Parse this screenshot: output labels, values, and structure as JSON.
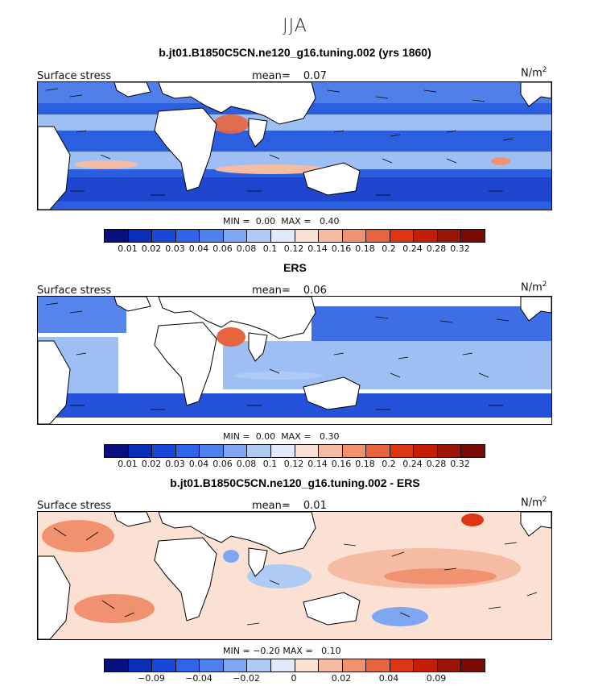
{
  "season": "JJA",
  "chart_data": [
    {
      "type": "heatmap",
      "title": "b.jt01.B1850C5CN.ne120_g16.tuning.002 (yrs 1860)",
      "field_label": "Surface stress",
      "mean_label": "mean=",
      "mean_value": "0.07",
      "units_base": "N/m",
      "units_exp": "2",
      "min_label": "MIN =",
      "min_value": "0.00",
      "max_label": "MAX =",
      "max_value": "0.40",
      "colorbar_colors": [
        "#08107f",
        "#0a2fb8",
        "#1848d8",
        "#2e64e8",
        "#4d82ee",
        "#7ea6f2",
        "#aecbf5",
        "#dceafa",
        "#fbe0d4",
        "#f6bca3",
        "#f09270",
        "#e8643f",
        "#dd3512",
        "#c21e0a",
        "#9a1408",
        "#7a0a04"
      ],
      "colorbar_ticks": [
        "0.01",
        "0.02",
        "0.03",
        "0.04",
        "0.06",
        "0.08",
        "0.1",
        "0.12",
        "0.14",
        "0.16",
        "0.18",
        "0.2",
        "0.24",
        "0.28",
        "0.32"
      ]
    },
    {
      "type": "heatmap",
      "title": "ERS",
      "field_label": "Surface stress",
      "mean_label": "mean=",
      "mean_value": "0.06",
      "units_base": "N/m",
      "units_exp": "2",
      "min_label": "MIN =",
      "min_value": "0.00",
      "max_label": "MAX =",
      "max_value": "0.30",
      "colorbar_colors": [
        "#08107f",
        "#0a2fb8",
        "#1848d8",
        "#2e64e8",
        "#4d82ee",
        "#7ea6f2",
        "#aecbf5",
        "#dceafa",
        "#fbe0d4",
        "#f6bca3",
        "#f09270",
        "#e8643f",
        "#dd3512",
        "#c21e0a",
        "#9a1408",
        "#7a0a04"
      ],
      "colorbar_ticks": [
        "0.01",
        "0.02",
        "0.03",
        "0.04",
        "0.06",
        "0.08",
        "0.1",
        "0.12",
        "0.14",
        "0.16",
        "0.18",
        "0.2",
        "0.24",
        "0.28",
        "0.32"
      ]
    },
    {
      "type": "heatmap",
      "title": "b.jt01.B1850C5CN.ne120_g16.tuning.002 - ERS",
      "field_label": "Surface stress",
      "mean_label": "mean=",
      "mean_value": "0.01",
      "units_base": "N/m",
      "units_exp": "2",
      "min_label": "MIN =",
      "min_value": "−0.20",
      "max_label": "MAX =",
      "max_value": "0.10",
      "colorbar_colors": [
        "#08107f",
        "#0a2fb8",
        "#1848d8",
        "#2e64e8",
        "#4d82ee",
        "#7ea6f2",
        "#aecbf5",
        "#dceafa",
        "#fbe0d4",
        "#f6bca3",
        "#f09270",
        "#e8643f",
        "#dd3512",
        "#c21e0a",
        "#9a1408",
        "#7a0a04"
      ],
      "colorbar_ticks": [
        "",
        "−0.09",
        "",
        "−0.04",
        "",
        "−0.02",
        "",
        "0",
        "",
        "0.02",
        "",
        "0.04",
        "",
        "0.09",
        ""
      ]
    }
  ]
}
